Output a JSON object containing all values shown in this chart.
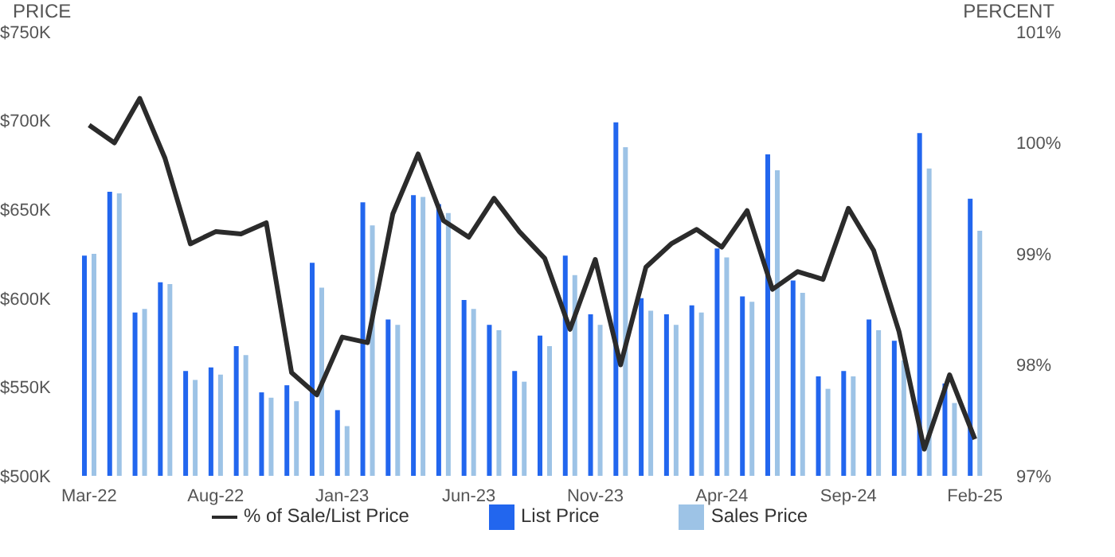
{
  "chart_data": {
    "type": "bar",
    "ylabel": "PRICE",
    "y2label": "PERCENT",
    "categories": [
      "Mar-22",
      null,
      null,
      null,
      null,
      "Aug-22",
      null,
      null,
      null,
      null,
      "Jan-23",
      null,
      null,
      null,
      null,
      "Jun-23",
      null,
      null,
      null,
      null,
      "Nov-23",
      null,
      null,
      null,
      null,
      "Apr-24",
      null,
      null,
      null,
      null,
      "Sep-24",
      null,
      null,
      null,
      null,
      "Feb-25"
    ],
    "series": [
      {
        "name": "% of Sale/List Price",
        "type": "line",
        "axis": "y2",
        "color": "#2b2b2b",
        "values": [
          100.16,
          100.0,
          100.4,
          99.86,
          99.09,
          99.2,
          99.18,
          99.28,
          97.93,
          97.73,
          98.25,
          98.2,
          99.36,
          99.9,
          99.3,
          99.15,
          99.5,
          99.2,
          98.96,
          98.32,
          98.95,
          98.0,
          98.88,
          99.09,
          99.22,
          99.06,
          99.39,
          98.68,
          98.84,
          98.77,
          99.41,
          99.03,
          98.3,
          97.24,
          97.91,
          97.33
        ]
      },
      {
        "name": "List Price",
        "color": "#2266ee",
        "values": [
          624,
          660,
          592,
          609,
          559,
          561,
          573,
          547,
          551,
          620,
          537,
          654,
          588,
          658,
          653,
          599,
          585,
          559,
          579,
          624,
          591,
          699,
          600,
          591,
          596,
          628,
          601,
          681,
          610,
          556,
          559,
          588,
          576,
          693,
          552,
          656
        ]
      },
      {
        "name": "Sales Price",
        "color": "#9dc3e6",
        "values": [
          625,
          659,
          594,
          608,
          554,
          557,
          568,
          544,
          542,
          606,
          528,
          641,
          585,
          657,
          648,
          594,
          582,
          553,
          573,
          613,
          585,
          685,
          593,
          585,
          592,
          623,
          598,
          672,
          603,
          549,
          556,
          582,
          565,
          673,
          541,
          638
        ]
      }
    ],
    "ylim": [
      500,
      750
    ],
    "yticks": [
      {
        "value": 500,
        "label": "$500K"
      },
      {
        "value": 550,
        "label": "$550K"
      },
      {
        "value": 600,
        "label": "$600K"
      },
      {
        "value": 650,
        "label": "$650K"
      },
      {
        "value": 700,
        "label": "$700K"
      },
      {
        "value": 750,
        "label": "$750K"
      }
    ],
    "y2lim": [
      97,
      101
    ],
    "y2ticks": [
      {
        "value": 97,
        "label": "97%"
      },
      {
        "value": 98,
        "label": "98%"
      },
      {
        "value": 99,
        "label": "99%"
      },
      {
        "value": 100,
        "label": "100%"
      },
      {
        "value": 101,
        "label": "101%"
      }
    ],
    "grid": false,
    "legend": "bottom",
    "marker": "none"
  }
}
